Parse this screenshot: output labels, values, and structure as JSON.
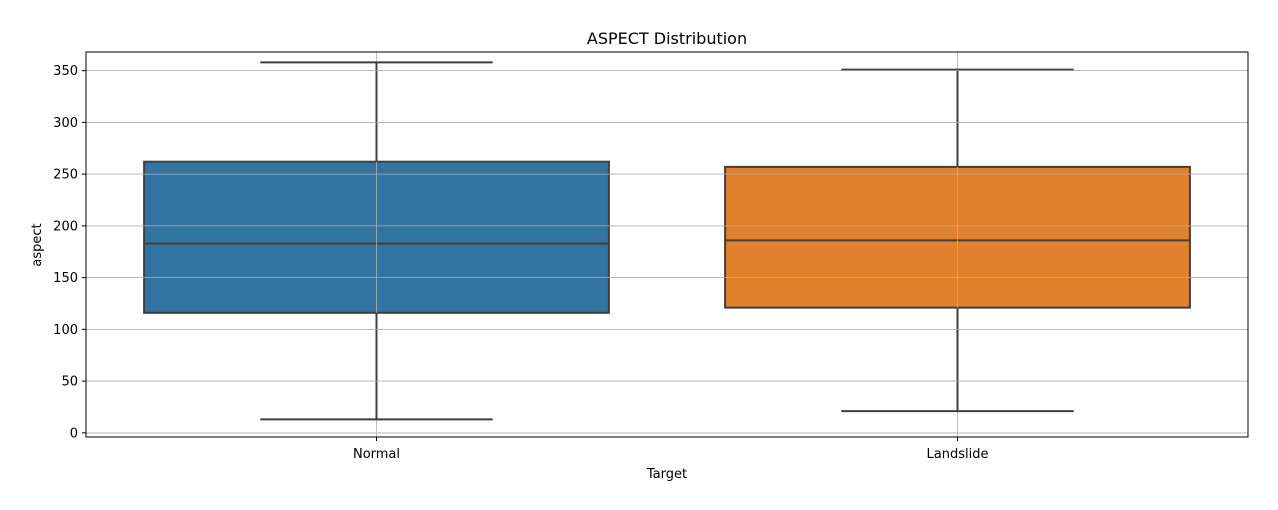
{
  "chart_data": {
    "type": "box",
    "title": "ASPECT Distribution",
    "xlabel": "Target",
    "ylabel": "aspect",
    "ylim": [
      -4,
      368
    ],
    "yticks": [
      0,
      50,
      100,
      150,
      200,
      250,
      300,
      350
    ],
    "grid": true,
    "categories": [
      "Normal",
      "Landslide"
    ],
    "boxes": [
      {
        "name": "Normal",
        "whisker_low": 13,
        "q1": 116,
        "median": 183,
        "q3": 262,
        "whisker_high": 358,
        "color": "#3274a1"
      },
      {
        "name": "Landslide",
        "whisker_low": 21,
        "q1": 121,
        "median": 186,
        "q3": 257,
        "whisker_high": 351,
        "color": "#e1812c"
      }
    ]
  }
}
